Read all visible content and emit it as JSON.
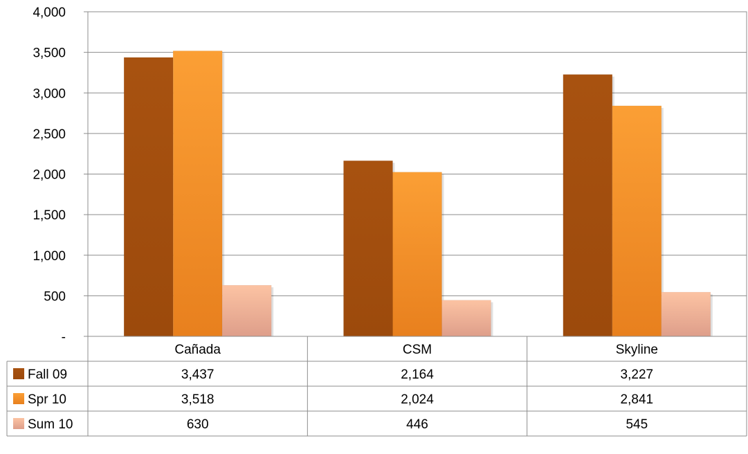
{
  "chart_data": {
    "type": "bar",
    "categories": [
      "Cañada",
      "CSM",
      "Skyline"
    ],
    "series": [
      {
        "name": "Fall 09",
        "values": [
          3437,
          2164,
          3227
        ],
        "display": [
          "3,437",
          "2,164",
          "3,227"
        ],
        "color": "#A34F0E"
      },
      {
        "name": "Spr 10",
        "values": [
          3518,
          2024,
          2841
        ],
        "display": [
          "3,518",
          "2,024",
          "2,841"
        ],
        "color": "#F79A33"
      },
      {
        "name": "Sum 10",
        "values": [
          630,
          446,
          545
        ],
        "display": [
          "630",
          "446",
          "545"
        ],
        "color": "#F9BE9C"
      }
    ],
    "yticks": [
      0,
      500,
      1000,
      1500,
      2000,
      2500,
      3000,
      3500,
      4000
    ],
    "ytick_labels": [
      "-",
      "500",
      "1,000",
      "1,500",
      "2,000",
      "2,500",
      "3,000",
      "3,500",
      "4,000"
    ],
    "ylim": [
      0,
      4000
    ],
    "grid": true,
    "legend": "data-table-left",
    "title": "",
    "xlabel": "",
    "ylabel": ""
  }
}
